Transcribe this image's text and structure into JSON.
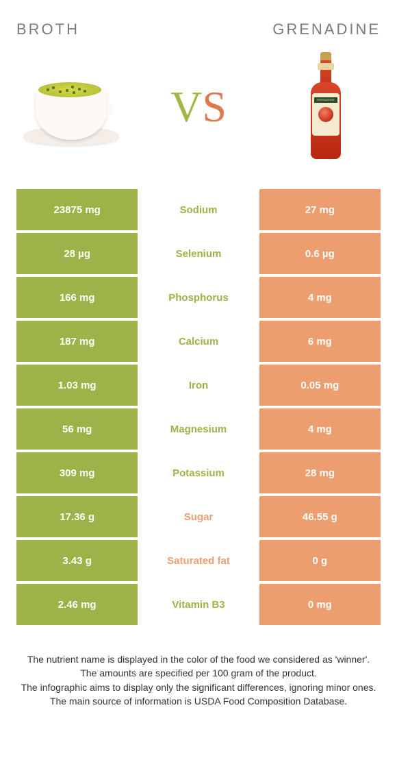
{
  "left_title": "BROTH",
  "right_title": "GRENADINE",
  "vs": {
    "v": "V",
    "s": "S"
  },
  "colors": {
    "left": "#9db347",
    "right": "#ed9e6e",
    "mid_left_text": "#9db347",
    "mid_right_text": "#ed9e6e",
    "footer_text": "#333333"
  },
  "rows": [
    {
      "left": "23875 mg",
      "name": "Sodium",
      "right": "27 mg",
      "winner": "left"
    },
    {
      "left": "28 µg",
      "name": "Selenium",
      "right": "0.6 µg",
      "winner": "left"
    },
    {
      "left": "166 mg",
      "name": "Phosphorus",
      "right": "4 mg",
      "winner": "left"
    },
    {
      "left": "187 mg",
      "name": "Calcium",
      "right": "6 mg",
      "winner": "left"
    },
    {
      "left": "1.03 mg",
      "name": "Iron",
      "right": "0.05 mg",
      "winner": "left"
    },
    {
      "left": "56 mg",
      "name": "Magnesium",
      "right": "4 mg",
      "winner": "left"
    },
    {
      "left": "309 mg",
      "name": "Potassium",
      "right": "28 mg",
      "winner": "left"
    },
    {
      "left": "17.36 g",
      "name": "Sugar",
      "right": "46.55 g",
      "winner": "right"
    },
    {
      "left": "3.43 g",
      "name": "Saturated fat",
      "right": "0 g",
      "winner": "right"
    },
    {
      "left": "2.46 mg",
      "name": "Vitamin B3",
      "right": "0 mg",
      "winner": "left"
    }
  ],
  "footer": [
    "The nutrient name is displayed in the color of the food we considered as 'winner'.",
    "The amounts are specified per 100 gram of the product.",
    "The infographic aims to display only the significant differences, ignoring minor ones.",
    "The main source of information is USDA Food Composition Database."
  ]
}
